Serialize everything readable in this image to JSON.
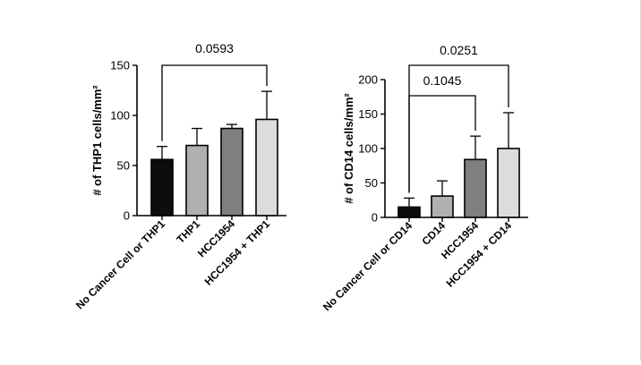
{
  "chart_data": [
    {
      "type": "bar",
      "ylabel": "# of  THP1 cells/mm²",
      "ylim": [
        0,
        150
      ],
      "yticks": [
        0,
        50,
        100,
        150
      ],
      "categories": [
        "No Cancer Cell or THP1",
        "THP1",
        "HCC1954",
        "HCC1954 + THP1"
      ],
      "values": [
        56,
        70,
        87,
        96
      ],
      "errors": [
        13,
        17,
        4,
        28
      ],
      "colors": [
        "#0d0d0d",
        "#b0b0b0",
        "#808080",
        "#dcdcdc"
      ],
      "significance": [
        {
          "from": 0,
          "to": 3,
          "label": "0.0593"
        }
      ]
    },
    {
      "type": "bar",
      "ylabel": "# of CD14 cells/mm²",
      "ylim": [
        0,
        200
      ],
      "yticks": [
        0,
        50,
        100,
        150,
        200
      ],
      "categories": [
        "No Cancer Cell or CD14",
        "CD14",
        "HCC1954",
        "HCC1954 + CD14"
      ],
      "values": [
        15,
        31,
        84,
        100
      ],
      "errors": [
        13,
        22,
        34,
        52
      ],
      "colors": [
        "#0d0d0d",
        "#b0b0b0",
        "#808080",
        "#dcdcdc"
      ],
      "significance": [
        {
          "from": 0,
          "to": 2,
          "label": "0.1045"
        },
        {
          "from": 0,
          "to": 3,
          "label": "0.0251"
        }
      ]
    }
  ]
}
